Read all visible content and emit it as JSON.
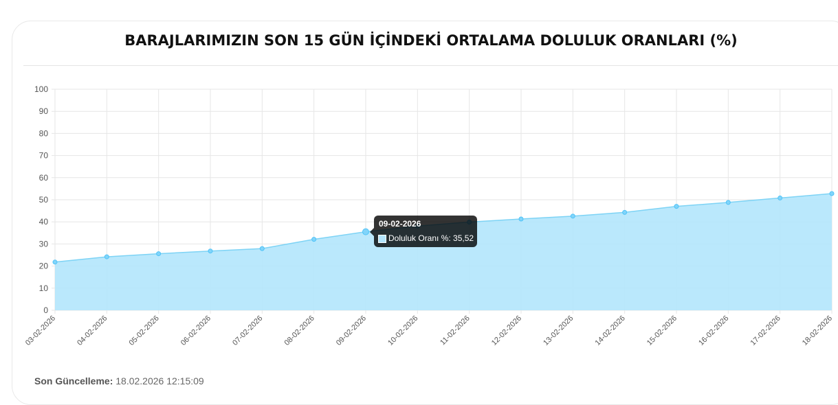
{
  "title": "BARAJLARIMIZIN SON 15 GÜN İÇİNDEKİ ORTALAMA DOLULUK ORANLARI (%)",
  "footer": {
    "label": "Son Güncelleme:",
    "value": "18.02.2026 12:15:09"
  },
  "tooltip": {
    "title": "09-02-2026",
    "line": "Doluluk Oranı %: 35,52"
  },
  "colors": {
    "fill": "#b3e5fc",
    "line": "#7dd3f5",
    "point": "#81d4fa",
    "grid": "#e6e6e6"
  },
  "chart_data": {
    "type": "area",
    "title": "BARAJLARIMIZIN SON 15 GÜN İÇİNDEKİ ORTALAMA DOLULUK ORANLARI (%)",
    "xlabel": "",
    "ylabel": "",
    "ylim": [
      0,
      100
    ],
    "yticks": [
      0,
      10,
      20,
      30,
      40,
      50,
      60,
      70,
      80,
      90,
      100
    ],
    "grid": true,
    "categories": [
      "03-02-2026",
      "04-02-2026",
      "05-02-2026",
      "06-02-2026",
      "07-02-2026",
      "08-02-2026",
      "09-02-2026",
      "10-02-2026",
      "11-02-2026",
      "12-02-2026",
      "13-02-2026",
      "14-02-2026",
      "15-02-2026",
      "16-02-2026",
      "17-02-2026",
      "18-02-2026"
    ],
    "series": [
      {
        "name": "Doluluk Oranı %",
        "values": [
          21.8,
          24.2,
          25.6,
          26.8,
          27.9,
          32.1,
          35.52,
          38.1,
          39.9,
          41.3,
          42.6,
          44.3,
          47.0,
          48.8,
          50.8,
          52.8
        ]
      }
    ],
    "highlight_index": 6
  }
}
